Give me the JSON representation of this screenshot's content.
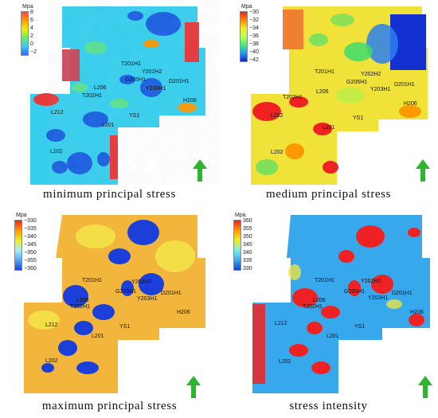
{
  "panels": [
    {
      "id": "min",
      "caption": "minimum principal stress",
      "unit": "Mpa",
      "ticks": [
        "8",
        "6",
        "4",
        "2",
        "0",
        "−2"
      ],
      "colorbar": [
        "#f44",
        "#f90",
        "#ee0",
        "#6e6",
        "#3cf",
        "#36f"
      ],
      "base_color": "#35d0ee",
      "wells": [
        "T201H1",
        "Y202H2",
        "G205H1",
        "L206",
        "Y200H1",
        "D201H1",
        "T202H1",
        "H206",
        "YS1",
        "L212",
        "L201",
        "L202"
      ]
    },
    {
      "id": "med",
      "caption": "medium principal stress",
      "unit": "Mpa",
      "ticks": [
        "−30",
        "−32",
        "−34",
        "−36",
        "−38",
        "−40",
        "−42"
      ],
      "colorbar": [
        "#e22",
        "#f80",
        "#ee2",
        "#bf5",
        "#4e7",
        "#29f",
        "#12c"
      ],
      "base_color": "#f2e33a",
      "wells": [
        "T201H1",
        "Y202H2",
        "G205H1",
        "L206",
        "Y203H1",
        "D201H1",
        "T202H1",
        "H206",
        "YS1",
        "L212",
        "L201",
        "L202"
      ]
    },
    {
      "id": "max",
      "caption": "maximum principal stress",
      "unit": "Mpa",
      "ticks": [
        "−330",
        "−335",
        "−340",
        "−345",
        "−350",
        "−355",
        "−360"
      ],
      "colorbar": [
        "#e22",
        "#f90",
        "#ee2",
        "#aef",
        "#5ae",
        "#14d"
      ],
      "base_color": "#f3b43b",
      "wells": [
        "T201H1",
        "Y202H2",
        "G205H1",
        "L206",
        "Y203H1",
        "D201H1",
        "T202H1",
        "H206",
        "YS1",
        "L212",
        "L201",
        "L202"
      ]
    },
    {
      "id": "int",
      "caption": "stress intensity",
      "unit": "Mpa",
      "ticks": [
        "360",
        "355",
        "350",
        "345",
        "340",
        "335",
        "330"
      ],
      "colorbar": [
        "#e22",
        "#f90",
        "#ee2",
        "#7ee",
        "#4ae",
        "#14c"
      ],
      "base_color": "#36a9ec",
      "wells": [
        "T201H1",
        "Y202H2",
        "G205H1",
        "L206",
        "Y203H1",
        "D201H1",
        "T202H1",
        "H206",
        "YS1",
        "L212",
        "L201",
        "L202"
      ]
    }
  ]
}
